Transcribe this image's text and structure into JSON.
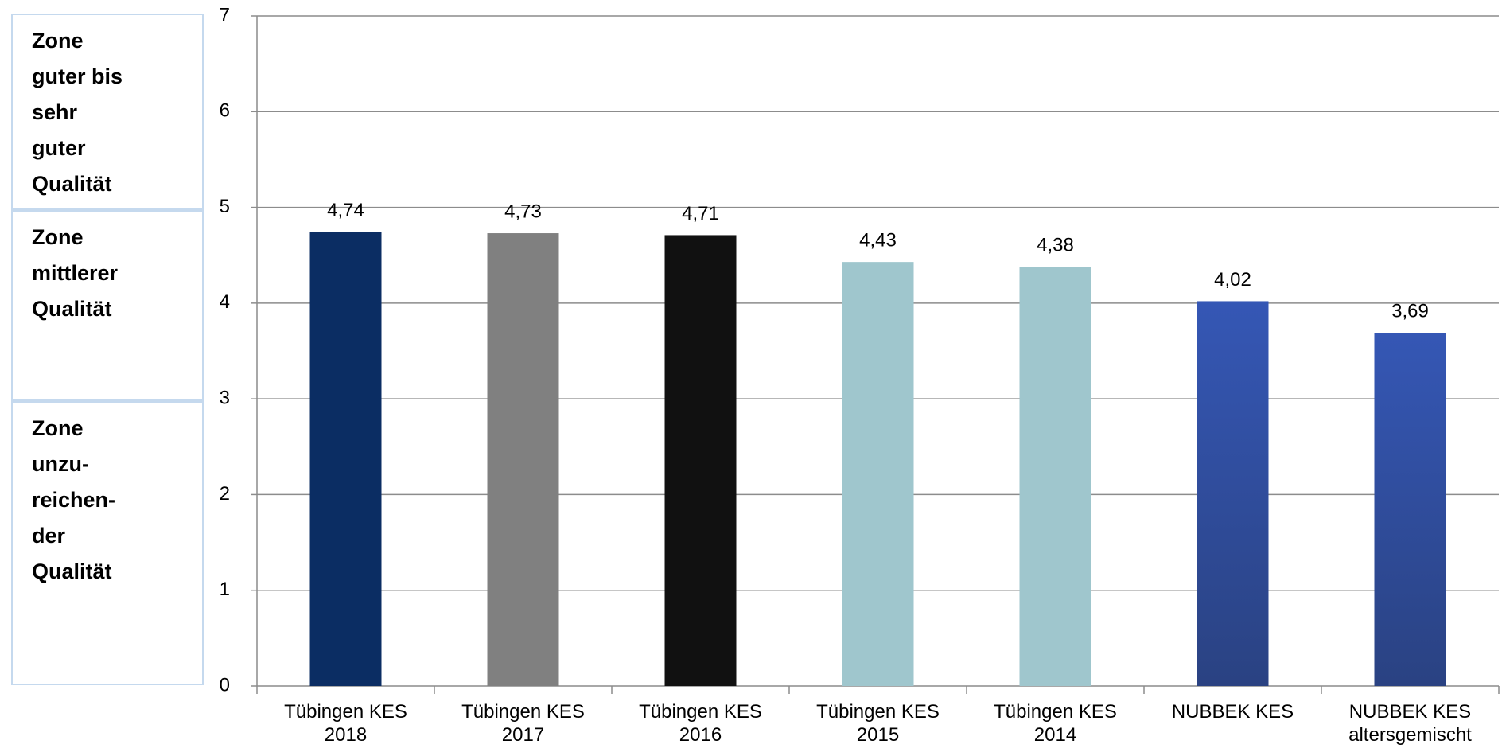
{
  "chart_data": {
    "type": "bar",
    "categories": [
      "Tübingen KES 2018",
      "Tübingen KES 2017",
      "Tübingen KES 2016",
      "Tübingen KES 2015",
      "Tübingen KES 2014",
      "NUBBEK KES",
      "NUBBEK KES altersgemischt"
    ],
    "values": [
      4.74,
      4.73,
      4.71,
      4.43,
      4.38,
      4.02,
      3.69
    ],
    "value_labels": [
      "4,74",
      "4,73",
      "4,71",
      "4,43",
      "4,38",
      "4,02",
      "3,69"
    ],
    "colors": [
      "#0b2d63",
      "#808080",
      "#111111",
      "#9fc6cd",
      "#9fc6cd",
      "#3557b5",
      "#3557b5"
    ],
    "ylim": [
      0,
      7
    ],
    "yticks": [
      0,
      1,
      2,
      3,
      4,
      5,
      6,
      7
    ],
    "grid": true
  },
  "zones": [
    {
      "lines": [
        "Zone",
        "guter bis",
        "sehr",
        "guter",
        "Qualität"
      ]
    },
    {
      "lines": [
        "Zone",
        "mittlerer",
        "Qualität"
      ]
    },
    {
      "lines": [
        "Zone",
        "unzu-",
        "reichen-",
        "der",
        "Qualität"
      ]
    }
  ]
}
